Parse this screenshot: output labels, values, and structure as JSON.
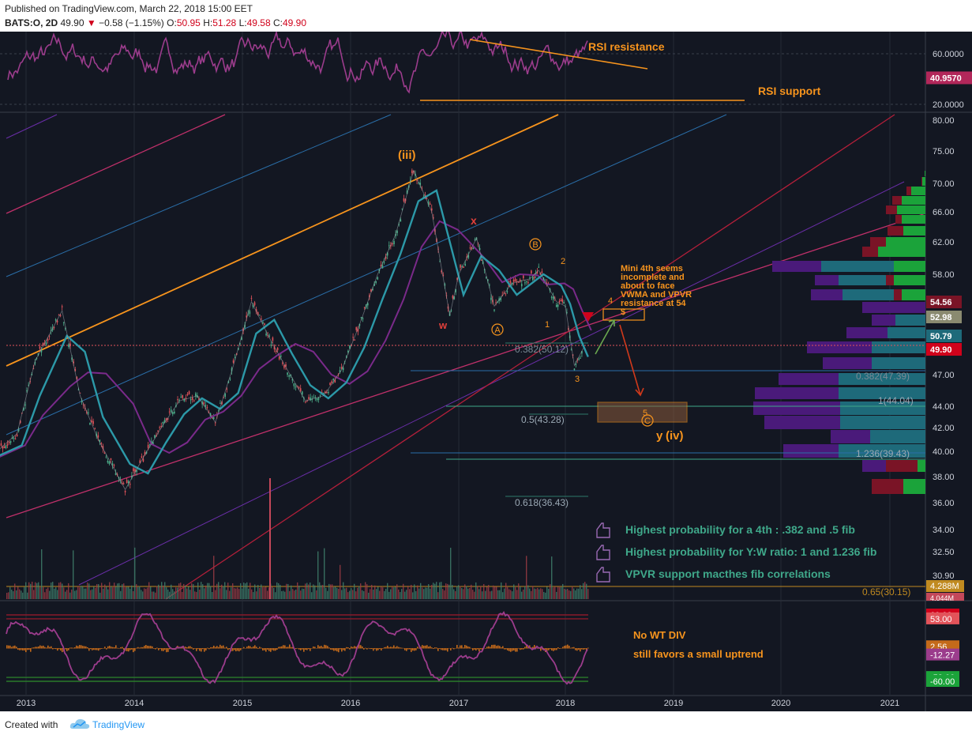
{
  "header": {
    "published": "Published on TradingView.com, March 22, 2018 15:00 EET",
    "symbol": "BATS:O, 2D",
    "last": "49.90",
    "change": "−0.58 (−1.15%)",
    "open_label": "O:",
    "open": "50.95",
    "high_label": "H:",
    "high": "51.28",
    "low_label": "L:",
    "low": "49.58",
    "close_label": "C:",
    "close": "49.90"
  },
  "footer": {
    "created": "Created with",
    "brand": "TradingView"
  },
  "colors": {
    "background": "#131722",
    "price_up": "#4caf8a",
    "price_down": "#e2535a",
    "orange": "#f7941d",
    "rsi": "#9b3c8c",
    "wma": "#2c99a8",
    "vpvr_purple": "#4a1a7a",
    "vpvr_teal": "#1e6a7a",
    "vpvr_green": "#1ba33a",
    "vpvr_red": "#7a1426"
  },
  "chart_data": [
    {
      "type": "line",
      "panel": "RSI",
      "title": "",
      "y_ticks": [
        "60.0000",
        "20.0000"
      ],
      "current_value": "40.9570",
      "annotations": [
        "RSI resistance",
        "RSI support"
      ]
    },
    {
      "type": "line",
      "panel": "price",
      "title": "BATS:O, 2D",
      "x_ticks": [
        "2013",
        "2014",
        "2015",
        "2016",
        "2017",
        "2018",
        "2019",
        "2020",
        "2021"
      ],
      "y_ticks": [
        "80.00",
        "75.00",
        "70.00",
        "66.00",
        "62.00",
        "58.00",
        "47.00",
        "44.00",
        "42.00",
        "40.00",
        "38.00",
        "36.00",
        "34.00",
        "32.50",
        "30.90"
      ],
      "ylim": [
        29.8,
        80.5
      ],
      "series": [
        {
          "name": "BATS:O, 2D",
          "x": [
            "2012-09",
            "2012-12",
            "2013-02",
            "2013-05",
            "2013-07",
            "2013-09",
            "2013-12",
            "2014-02",
            "2014-04",
            "2014-06",
            "2014-08",
            "2014-10",
            "2014-12",
            "2015-02",
            "2015-04",
            "2015-06",
            "2015-08",
            "2015-10",
            "2015-12",
            "2016-02",
            "2016-04",
            "2016-06",
            "2016-08",
            "2016-10",
            "2016-12",
            "2017-01",
            "2017-03",
            "2017-05",
            "2017-07",
            "2017-09",
            "2017-10",
            "2017-12",
            "2018-01",
            "2018-02",
            "2018-03"
          ],
          "y": [
            39.5,
            41.5,
            48.5,
            54.0,
            45.0,
            41.0,
            37.0,
            39.5,
            42.0,
            44.5,
            45.0,
            42.5,
            48.0,
            55.0,
            51.0,
            47.5,
            44.5,
            45.0,
            47.5,
            52.5,
            58.0,
            63.0,
            72.0,
            66.0,
            53.5,
            58.0,
            62.5,
            54.5,
            57.0,
            57.5,
            58.5,
            55.0,
            54.5,
            48.0,
            49.9
          ]
        }
      ],
      "price_labels": [
        "54.56",
        "52.98",
        "50.79",
        "49.90"
      ],
      "fib_labels": [
        "0.382(50.12)",
        "0.382(47.39)",
        "1(44.04)",
        "0.5(43.28)",
        "1.236(39.43)",
        "0.618(36.43)",
        "0.65(30.15)"
      ],
      "wave_labels": [
        "(iii)",
        "x",
        "w",
        "A",
        "B",
        "1",
        "2",
        "3",
        "4",
        "5",
        "C",
        "y",
        "(iv)"
      ],
      "annotations": [
        "Mini 4th seems incomplete and about to face VWMA and VPVR resistance at 54 $",
        "Highest probability for a 4th : .382 and .5 fib",
        "Highest probability for Y:W ratio: 1 and 1.236 fib",
        "VPVR support macthes fib correlations"
      ],
      "volume_labels": [
        "4.288M",
        "4.044M"
      ]
    },
    {
      "type": "line",
      "panel": "WaveTrend",
      "y_ticks": [
        "60.00",
        "53.00",
        "2.56",
        "-12.27",
        "-53.00",
        "-60.00"
      ],
      "annotations": [
        "No WT DIV",
        "still favors a small uptrend"
      ]
    }
  ]
}
